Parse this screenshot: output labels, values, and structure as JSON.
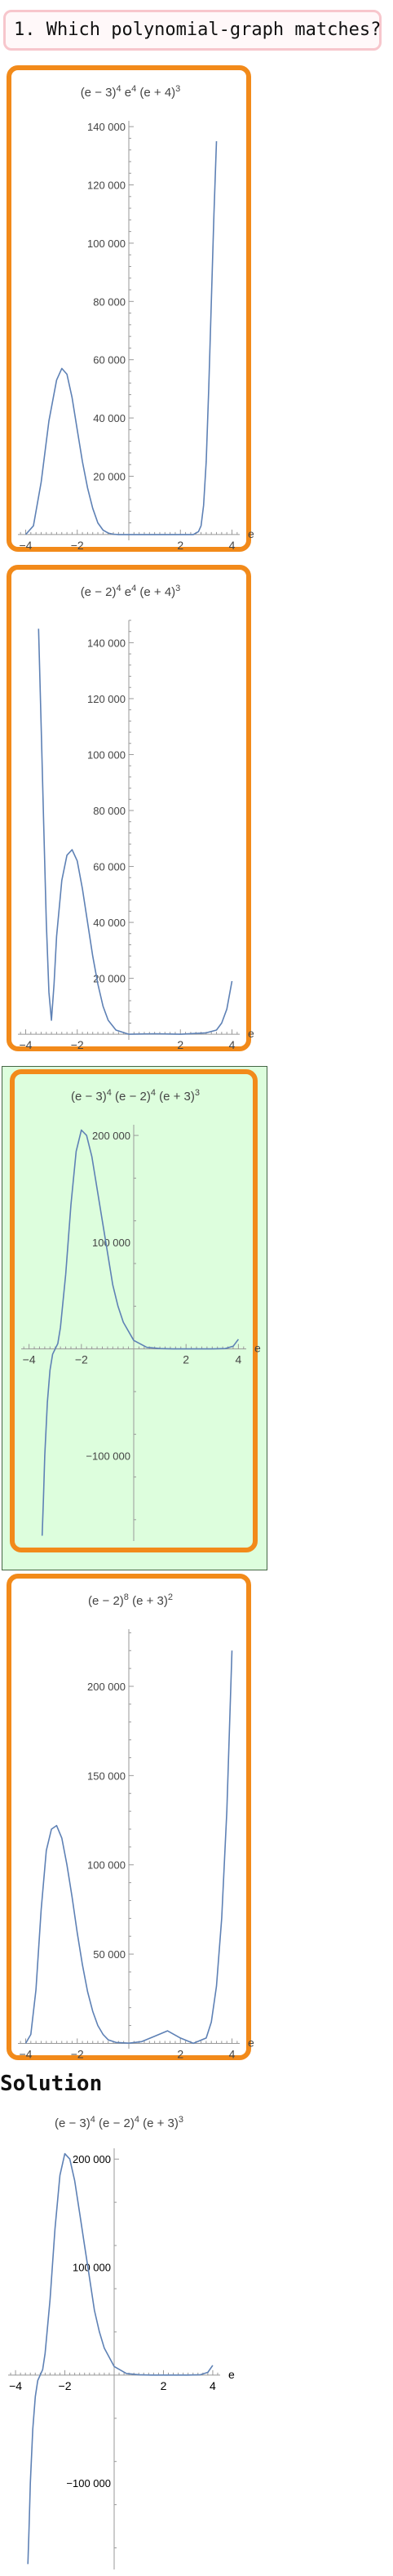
{
  "question": {
    "text": "1. Which polynomial-graph matches?"
  },
  "choices": [
    {
      "title_html": "(e − 3)<tspan baseline-shift=\"super\" font-size=\"11\">4</tspan> e<tspan baseline-shift=\"super\" font-size=\"11\">4</tspan> (e + 4)<tspan baseline-shift=\"super\" font-size=\"11\">3</tspan>",
      "formula": "(e - 3)^4 e^4 (e + 4)^3",
      "correct": false,
      "chart_data": {
        "type": "line",
        "xlabel": "e",
        "xlim": [
          -4.3,
          4.3
        ],
        "ylim": [
          -2000,
          142000
        ],
        "x_ticks": [
          -4,
          -2,
          2,
          4
        ],
        "x_tick_labels": [
          "−4",
          "−2",
          "2",
          "4"
        ],
        "y_ticks": [
          20000,
          40000,
          60000,
          80000,
          100000,
          120000,
          140000
        ],
        "y_tick_labels": [
          "20 000",
          "40 000",
          "60 000",
          "80 000",
          "100 000",
          "120 000",
          "140 000"
        ],
        "series": [
          {
            "x": [
              -4.0,
              -3.7,
              -3.4,
              -3.1,
              -2.8,
              -2.6,
              -2.4,
              -2.2,
              -2.0,
              -1.8,
              -1.6,
              -1.4,
              -1.2,
              -1.0,
              -0.8,
              -0.6,
              -0.4,
              0.0,
              0.5,
              1.0,
              1.5,
              2.0,
              2.3,
              2.5,
              2.7,
              2.8,
              2.9,
              3.0,
              3.1,
              3.2,
              3.3,
              3.4
            ],
            "y": [
              0,
              3000,
              18000,
              39000,
              53000,
              57000,
              55000,
              47000,
              36000,
              25000,
              16000,
              9000,
              4000,
              1500,
              500,
              100,
              0,
              0,
              0,
              0,
              0,
              0,
              0,
              0,
              1000,
              3000,
              10000,
              25000,
              50000,
              80000,
              110000,
              135000
            ]
          }
        ]
      }
    },
    {
      "title_html": "(e − 2)<tspan baseline-shift=\"super\" font-size=\"11\">4</tspan> e<tspan baseline-shift=\"super\" font-size=\"11\">4</tspan> (e + 4)<tspan baseline-shift=\"super\" font-size=\"11\">3</tspan>",
      "formula": "(e - 2)^4 e^4 (e + 4)^3",
      "correct": false,
      "chart_data": {
        "type": "line",
        "xlabel": "e",
        "xlim": [
          -4.3,
          4.3
        ],
        "ylim": [
          -2000,
          148000
        ],
        "x_ticks": [
          -4,
          -2,
          2,
          4
        ],
        "x_tick_labels": [
          "−4",
          "−2",
          "2",
          "4"
        ],
        "y_ticks": [
          20000,
          40000,
          60000,
          80000,
          100000,
          120000,
          140000
        ],
        "y_tick_labels": [
          "20 000",
          "40 000",
          "60 000",
          "80 000",
          "100 000",
          "120 000",
          "140 000"
        ],
        "series": [
          {
            "x": [
              -3.5,
              -3.4,
              -3.3,
              -3.2,
              -3.1,
              -3.0,
              -2.9,
              -2.8,
              -2.6,
              -2.4,
              -2.2,
              -2.0,
              -1.8,
              -1.6,
              -1.4,
              -1.2,
              -1.0,
              -0.8,
              -0.5,
              0.0,
              1.0,
              2.0,
              3.0,
              3.4,
              3.6,
              3.8,
              4.0
            ],
            "y": [
              145000,
              110000,
              75000,
              40000,
              15000,
              5000,
              18000,
              35000,
              55000,
              64000,
              66000,
              62000,
              52000,
              40000,
              28000,
              18000,
              10000,
              5000,
              1500,
              0,
              200,
              0,
              500,
              1500,
              4000,
              9000,
              19000
            ]
          }
        ]
      }
    },
    {
      "title_html": "(e − 3)<tspan baseline-shift=\"super\" font-size=\"11\">4</tspan> (e − 2)<tspan baseline-shift=\"super\" font-size=\"11\">4</tspan> (e + 3)<tspan baseline-shift=\"super\" font-size=\"11\">3</tspan>",
      "formula": "(e - 3)^4 (e - 2)^4 (e + 3)^3",
      "correct": true,
      "chart_data": {
        "type": "line",
        "xlabel": "e",
        "xlim": [
          -4.3,
          4.3
        ],
        "ylim": [
          -180000,
          210000
        ],
        "x_ticks": [
          -4,
          -2,
          2,
          4
        ],
        "x_tick_labels": [
          "−4",
          "−2",
          "2",
          "4"
        ],
        "y_ticks": [
          -100000,
          100000,
          200000
        ],
        "y_tick_labels": [
          "−100 000",
          "100 000",
          "200 000"
        ],
        "series": [
          {
            "x": [
              -3.5,
              -3.45,
              -3.4,
              -3.3,
              -3.2,
              -3.1,
              -3.0,
              -2.9,
              -2.8,
              -2.6,
              -2.4,
              -2.2,
              -2.0,
              -1.8,
              -1.6,
              -1.4,
              -1.2,
              -1.0,
              -0.8,
              -0.6,
              -0.4,
              0.0,
              0.5,
              1.0,
              1.5,
              2.0,
              2.5,
              3.0,
              3.5,
              3.8,
              4.0
            ],
            "y": [
              -175000,
              -140000,
              -100000,
              -50000,
              -20000,
              -5000,
              0,
              5000,
              20000,
              70000,
              135000,
              185000,
              205000,
              200000,
              180000,
              150000,
              120000,
              90000,
              60000,
              40000,
              25000,
              8000,
              1500,
              300,
              50,
              0,
              20,
              0,
              300,
              2500,
              9000
            ]
          }
        ]
      }
    },
    {
      "title_html": "(e − 2)<tspan baseline-shift=\"super\" font-size=\"11\">8</tspan> (e + 3)<tspan baseline-shift=\"super\" font-size=\"11\">2</tspan>",
      "formula": "(e - 2)^8 (e + 3)^2",
      "correct": false,
      "chart_data": {
        "type": "line",
        "xlabel": "e",
        "xlim": [
          -4.3,
          4.3
        ],
        "ylim": [
          -3000,
          232000
        ],
        "x_ticks": [
          -4,
          -2,
          2,
          4
        ],
        "x_tick_labels": [
          "−4",
          "−2",
          "2",
          "4"
        ],
        "y_ticks": [
          50000,
          100000,
          150000,
          200000
        ],
        "y_tick_labels": [
          "50 000",
          "100 000",
          "150 000",
          "200 000"
        ],
        "series": [
          {
            "x": [
              -4.0,
              -3.8,
              -3.6,
              -3.4,
              -3.2,
              -3.0,
              -2.8,
              -2.6,
              -2.4,
              -2.2,
              -2.0,
              -1.8,
              -1.6,
              -1.4,
              -1.2,
              -1.0,
              -0.8,
              -0.5,
              0.0,
              0.5,
              1.0,
              1.5,
              2.0,
              2.5,
              3.0,
              3.2,
              3.4,
              3.6,
              3.8,
              4.0
            ],
            "y": [
              0,
              5000,
              30000,
              75000,
              108000,
              120000,
              122000,
              115000,
              100000,
              82000,
              62000,
              44000,
              29000,
              18000,
              10000,
              5000,
              2000,
              500,
              100,
              1000,
              4000,
              7000,
              3000,
              0,
              3000,
              12000,
              32000,
              70000,
              130000,
              220000
            ]
          }
        ]
      }
    }
  ],
  "solution": {
    "label": "Solution",
    "title_html": "(e − 3)<tspan baseline-shift=\"super\" font-size=\"11\">4</tspan> (e − 2)<tspan baseline-shift=\"super\" font-size=\"11\">4</tspan> (e + 3)<tspan baseline-shift=\"super\" font-size=\"11\">3</tspan>",
    "formula": "(e - 3)^4 (e - 2)^4 (e + 3)^3"
  },
  "colors": {
    "curve": "#5e81b5",
    "option_border": "#f28a1a",
    "correct_bg": "#ddfedd",
    "question_border": "#f7c6cc"
  }
}
